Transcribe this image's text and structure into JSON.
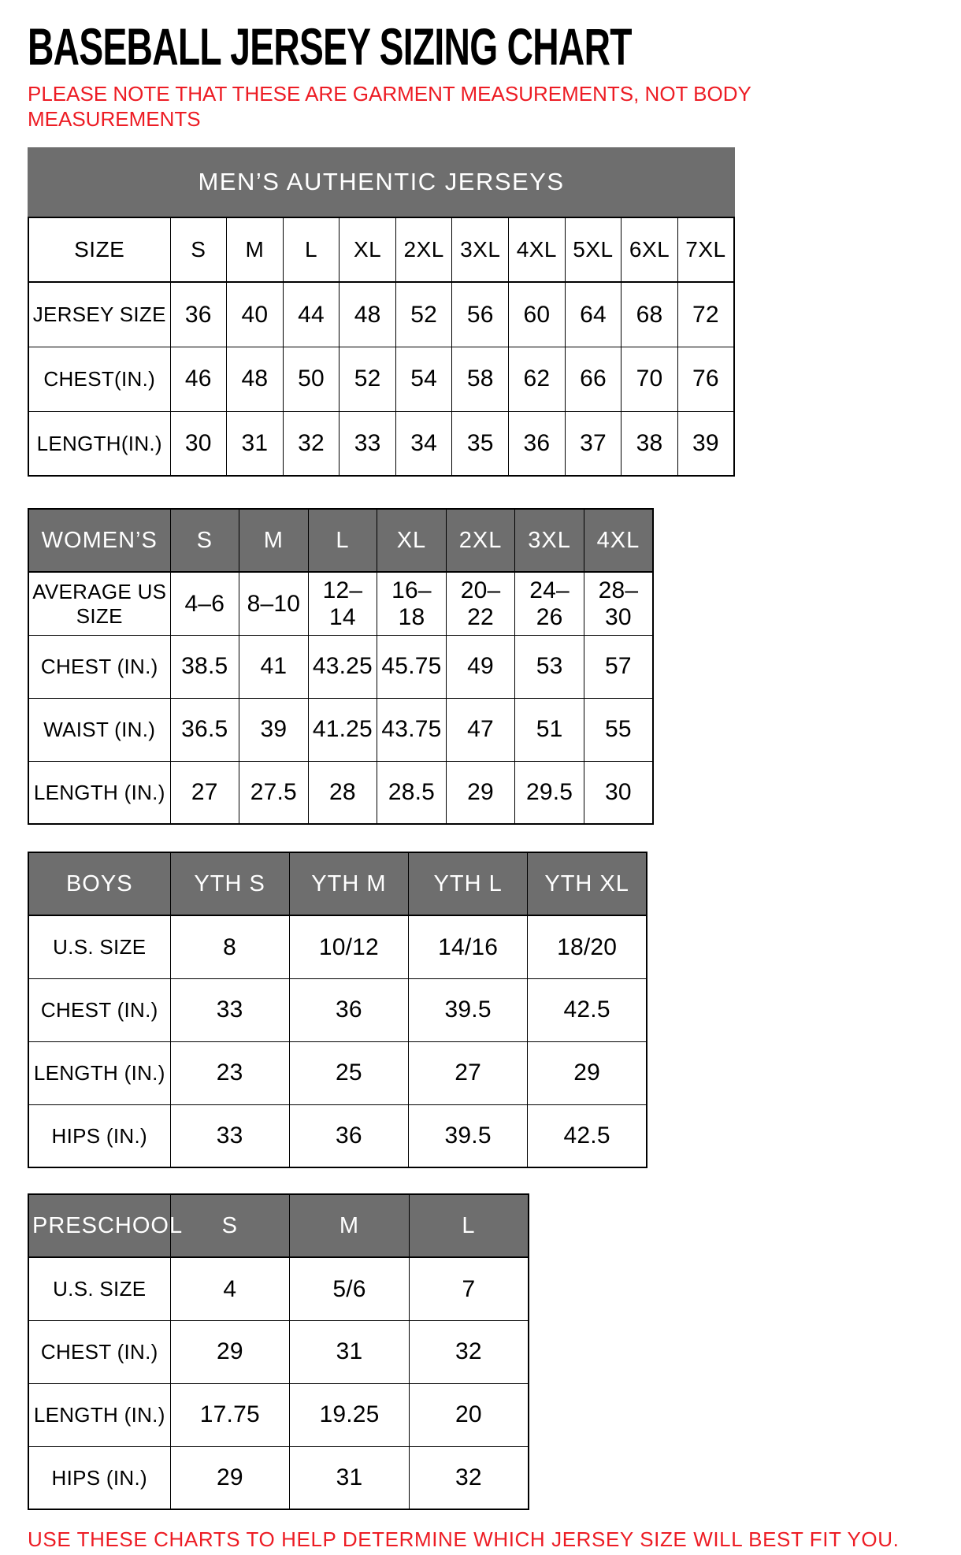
{
  "page": {
    "title": "BASEBALL JERSEY SIZING CHART",
    "top_note": "PLEASE NOTE THAT THESE ARE GARMENT MEASUREMENTS, NOT BODY MEASUREMENTS",
    "bottom_note": "USE THESE CHARTS TO HELP DETERMINE WHICH JERSEY SIZE WILL BEST FIT YOU."
  },
  "colors": {
    "note_red": "#ed1c24",
    "header_gray": "#6e6e6e",
    "border_black": "#000000",
    "background_white": "#ffffff"
  },
  "chart_data": [
    {
      "type": "table",
      "name": "mens-authentic-jerseys",
      "banner": "MEN’S AUTHENTIC JERSEYS",
      "header_gray": false,
      "columns": [
        "SIZE",
        "S",
        "M",
        "L",
        "XL",
        "2XL",
        "3XL",
        "4XL",
        "5XL",
        "6XL",
        "7XL"
      ],
      "rows": [
        [
          "JERSEY SIZE",
          "36",
          "40",
          "44",
          "48",
          "52",
          "56",
          "60",
          "64",
          "68",
          "72"
        ],
        [
          "CHEST(IN.)",
          "46",
          "48",
          "50",
          "52",
          "54",
          "58",
          "62",
          "66",
          "70",
          "76"
        ],
        [
          "LENGTH(IN.)",
          "30",
          "31",
          "32",
          "33",
          "34",
          "35",
          "36",
          "37",
          "38",
          "39"
        ]
      ]
    },
    {
      "type": "table",
      "name": "womens-jerseys",
      "banner": null,
      "header_gray": true,
      "columns": [
        "WOMEN’S",
        "S",
        "M",
        "L",
        "XL",
        "2XL",
        "3XL",
        "4XL"
      ],
      "rows": [
        [
          "AVERAGE US SIZE",
          "4–6",
          "8–10",
          "12–14",
          "16–18",
          "20–22",
          "24–26",
          "28–30"
        ],
        [
          "CHEST (IN.)",
          "38.5",
          "41",
          "43.25",
          "45.75",
          "49",
          "53",
          "57"
        ],
        [
          "WAIST (IN.)",
          "36.5",
          "39",
          "41.25",
          "43.75",
          "47",
          "51",
          "55"
        ],
        [
          "LENGTH (IN.)",
          "27",
          "27.5",
          "28",
          "28.5",
          "29",
          "29.5",
          "30"
        ]
      ]
    },
    {
      "type": "table",
      "name": "boys-jerseys",
      "banner": null,
      "header_gray": true,
      "columns": [
        "BOYS",
        "YTH S",
        "YTH M",
        "YTH L",
        "YTH XL"
      ],
      "rows": [
        [
          "U.S. SIZE",
          "8",
          "10/12",
          "14/16",
          "18/20"
        ],
        [
          "CHEST (IN.)",
          "33",
          "36",
          "39.5",
          "42.5"
        ],
        [
          "LENGTH (IN.)",
          "23",
          "25",
          "27",
          "29"
        ],
        [
          "HIPS (IN.)",
          "33",
          "36",
          "39.5",
          "42.5"
        ]
      ]
    },
    {
      "type": "table",
      "name": "preschool-jerseys",
      "banner": null,
      "header_gray": true,
      "columns": [
        "PRESCHOOL",
        "S",
        "M",
        "L"
      ],
      "rows": [
        [
          "U.S. SIZE",
          "4",
          "5/6",
          "7"
        ],
        [
          "CHEST (IN.)",
          "29",
          "31",
          "32"
        ],
        [
          "LENGTH (IN.)",
          "17.75",
          "19.25",
          "20"
        ],
        [
          "HIPS (IN.)",
          "29",
          "31",
          "32"
        ]
      ]
    }
  ]
}
